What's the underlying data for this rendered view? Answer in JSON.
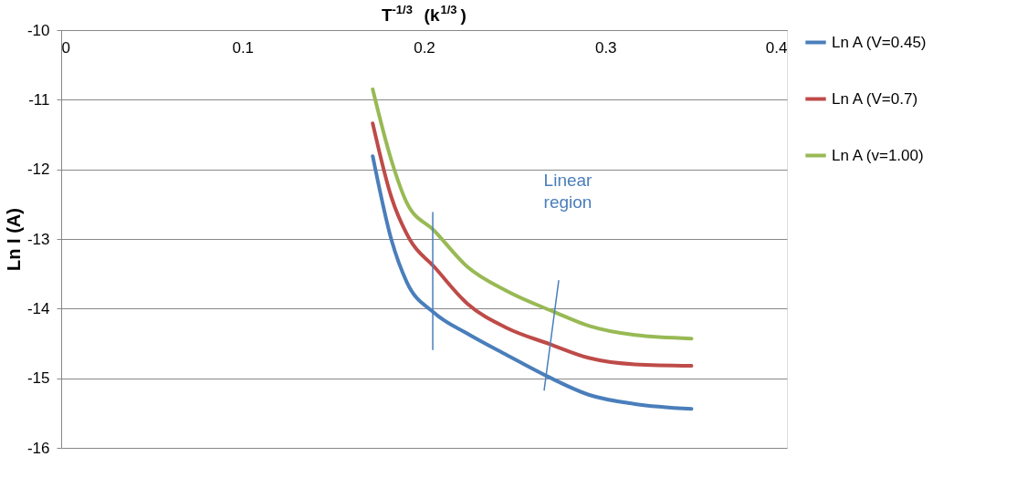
{
  "chart_data": {
    "type": "line",
    "xlabel": "T$^{-1/3}$  (k$^{1/3}$ )",
    "ylabel": "Ln I (A)",
    "xlim": [
      0,
      0.4
    ],
    "xticks": [
      0,
      0.1,
      0.2,
      0.3,
      0.4
    ],
    "ylim": [
      -16,
      -10
    ],
    "yticks": [
      -16,
      -15,
      -14,
      -13,
      -12,
      -11,
      -10
    ],
    "grid": "y",
    "legend": "right",
    "line_style": "solid",
    "marker": "none",
    "annotations": [
      "Linear region"
    ],
    "series": [
      {
        "name": "Ln A (V=0.45)",
        "color": "#4a7ebb",
        "x": [
          0.1717,
          0.182,
          0.1905,
          0.2056,
          0.2239,
          0.2458,
          0.2677,
          0.2911,
          0.3163,
          0.3474
        ],
        "values": [
          -11.81,
          -13.01,
          -13.62,
          -14.06,
          -14.36,
          -14.67,
          -14.97,
          -15.24,
          -15.37,
          -15.44
        ]
      },
      {
        "name": "Ln A (V=0.7)",
        "color": "#be4b48",
        "x": [
          0.1717,
          0.182,
          0.1922,
          0.2056,
          0.2239,
          0.2458,
          0.2693,
          0.2911,
          0.3163,
          0.3474
        ],
        "values": [
          -11.34,
          -12.4,
          -13.01,
          -13.4,
          -13.93,
          -14.28,
          -14.51,
          -14.71,
          -14.8,
          -14.82
        ]
      },
      {
        "name": "Ln A (v=1.00)",
        "color": "#98b954",
        "x": [
          0.1717,
          0.182,
          0.1905,
          0.2056,
          0.2239,
          0.2458,
          0.271,
          0.2911,
          0.3163,
          0.3474
        ],
        "values": [
          -10.85,
          -11.87,
          -12.48,
          -12.88,
          -13.4,
          -13.75,
          -14.04,
          -14.25,
          -14.38,
          -14.43
        ]
      },
      {
        "color": "#4a7ebb",
        "x": [
          0.2048,
          0.2048
        ],
        "values": [
          -12.62,
          -14.59
        ]
      },
      {
        "color": "#4a7ebb",
        "x": [
          0.2742,
          0.2662
        ],
        "values": [
          -13.6,
          -15.17
        ]
      }
    ]
  }
}
